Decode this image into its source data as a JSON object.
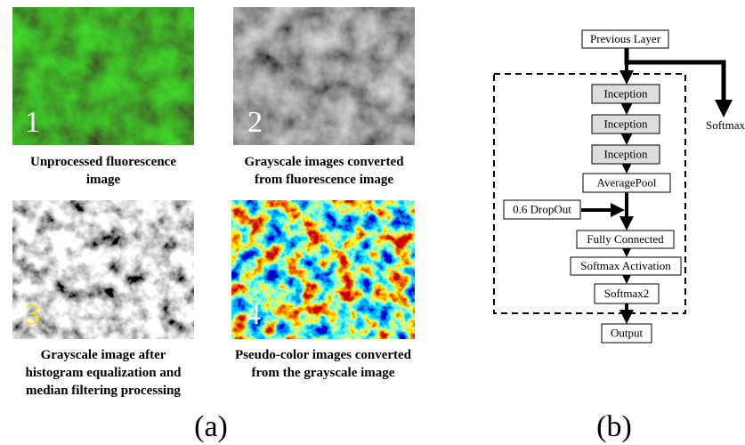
{
  "panel_a": {
    "label": "(a)",
    "images": [
      {
        "number": "1",
        "caption": [
          "Unprocessed fluorescence",
          "image"
        ]
      },
      {
        "number": "2",
        "caption": [
          "Grayscale images converted",
          "from fluorescence image"
        ]
      },
      {
        "number": "3",
        "caption": [
          "Grayscale image after",
          "histogram equalization and",
          "median filtering processing"
        ]
      },
      {
        "number": "4",
        "caption": [
          "Pseudo-color images converted",
          "from the grayscale image"
        ]
      }
    ]
  },
  "panel_b": {
    "label": "(b)",
    "nodes": [
      {
        "label": "Previous Layer"
      },
      {
        "label": "Inception"
      },
      {
        "label": "Inception"
      },
      {
        "label": "Inception"
      },
      {
        "label": "AveragePool"
      },
      {
        "label": "0.6 DropOut"
      },
      {
        "label": "Fully Connected"
      },
      {
        "label": "Softmax Activation"
      },
      {
        "label": "Softmax2"
      },
      {
        "label": "Output"
      }
    ],
    "side_output": "Softmax"
  }
}
